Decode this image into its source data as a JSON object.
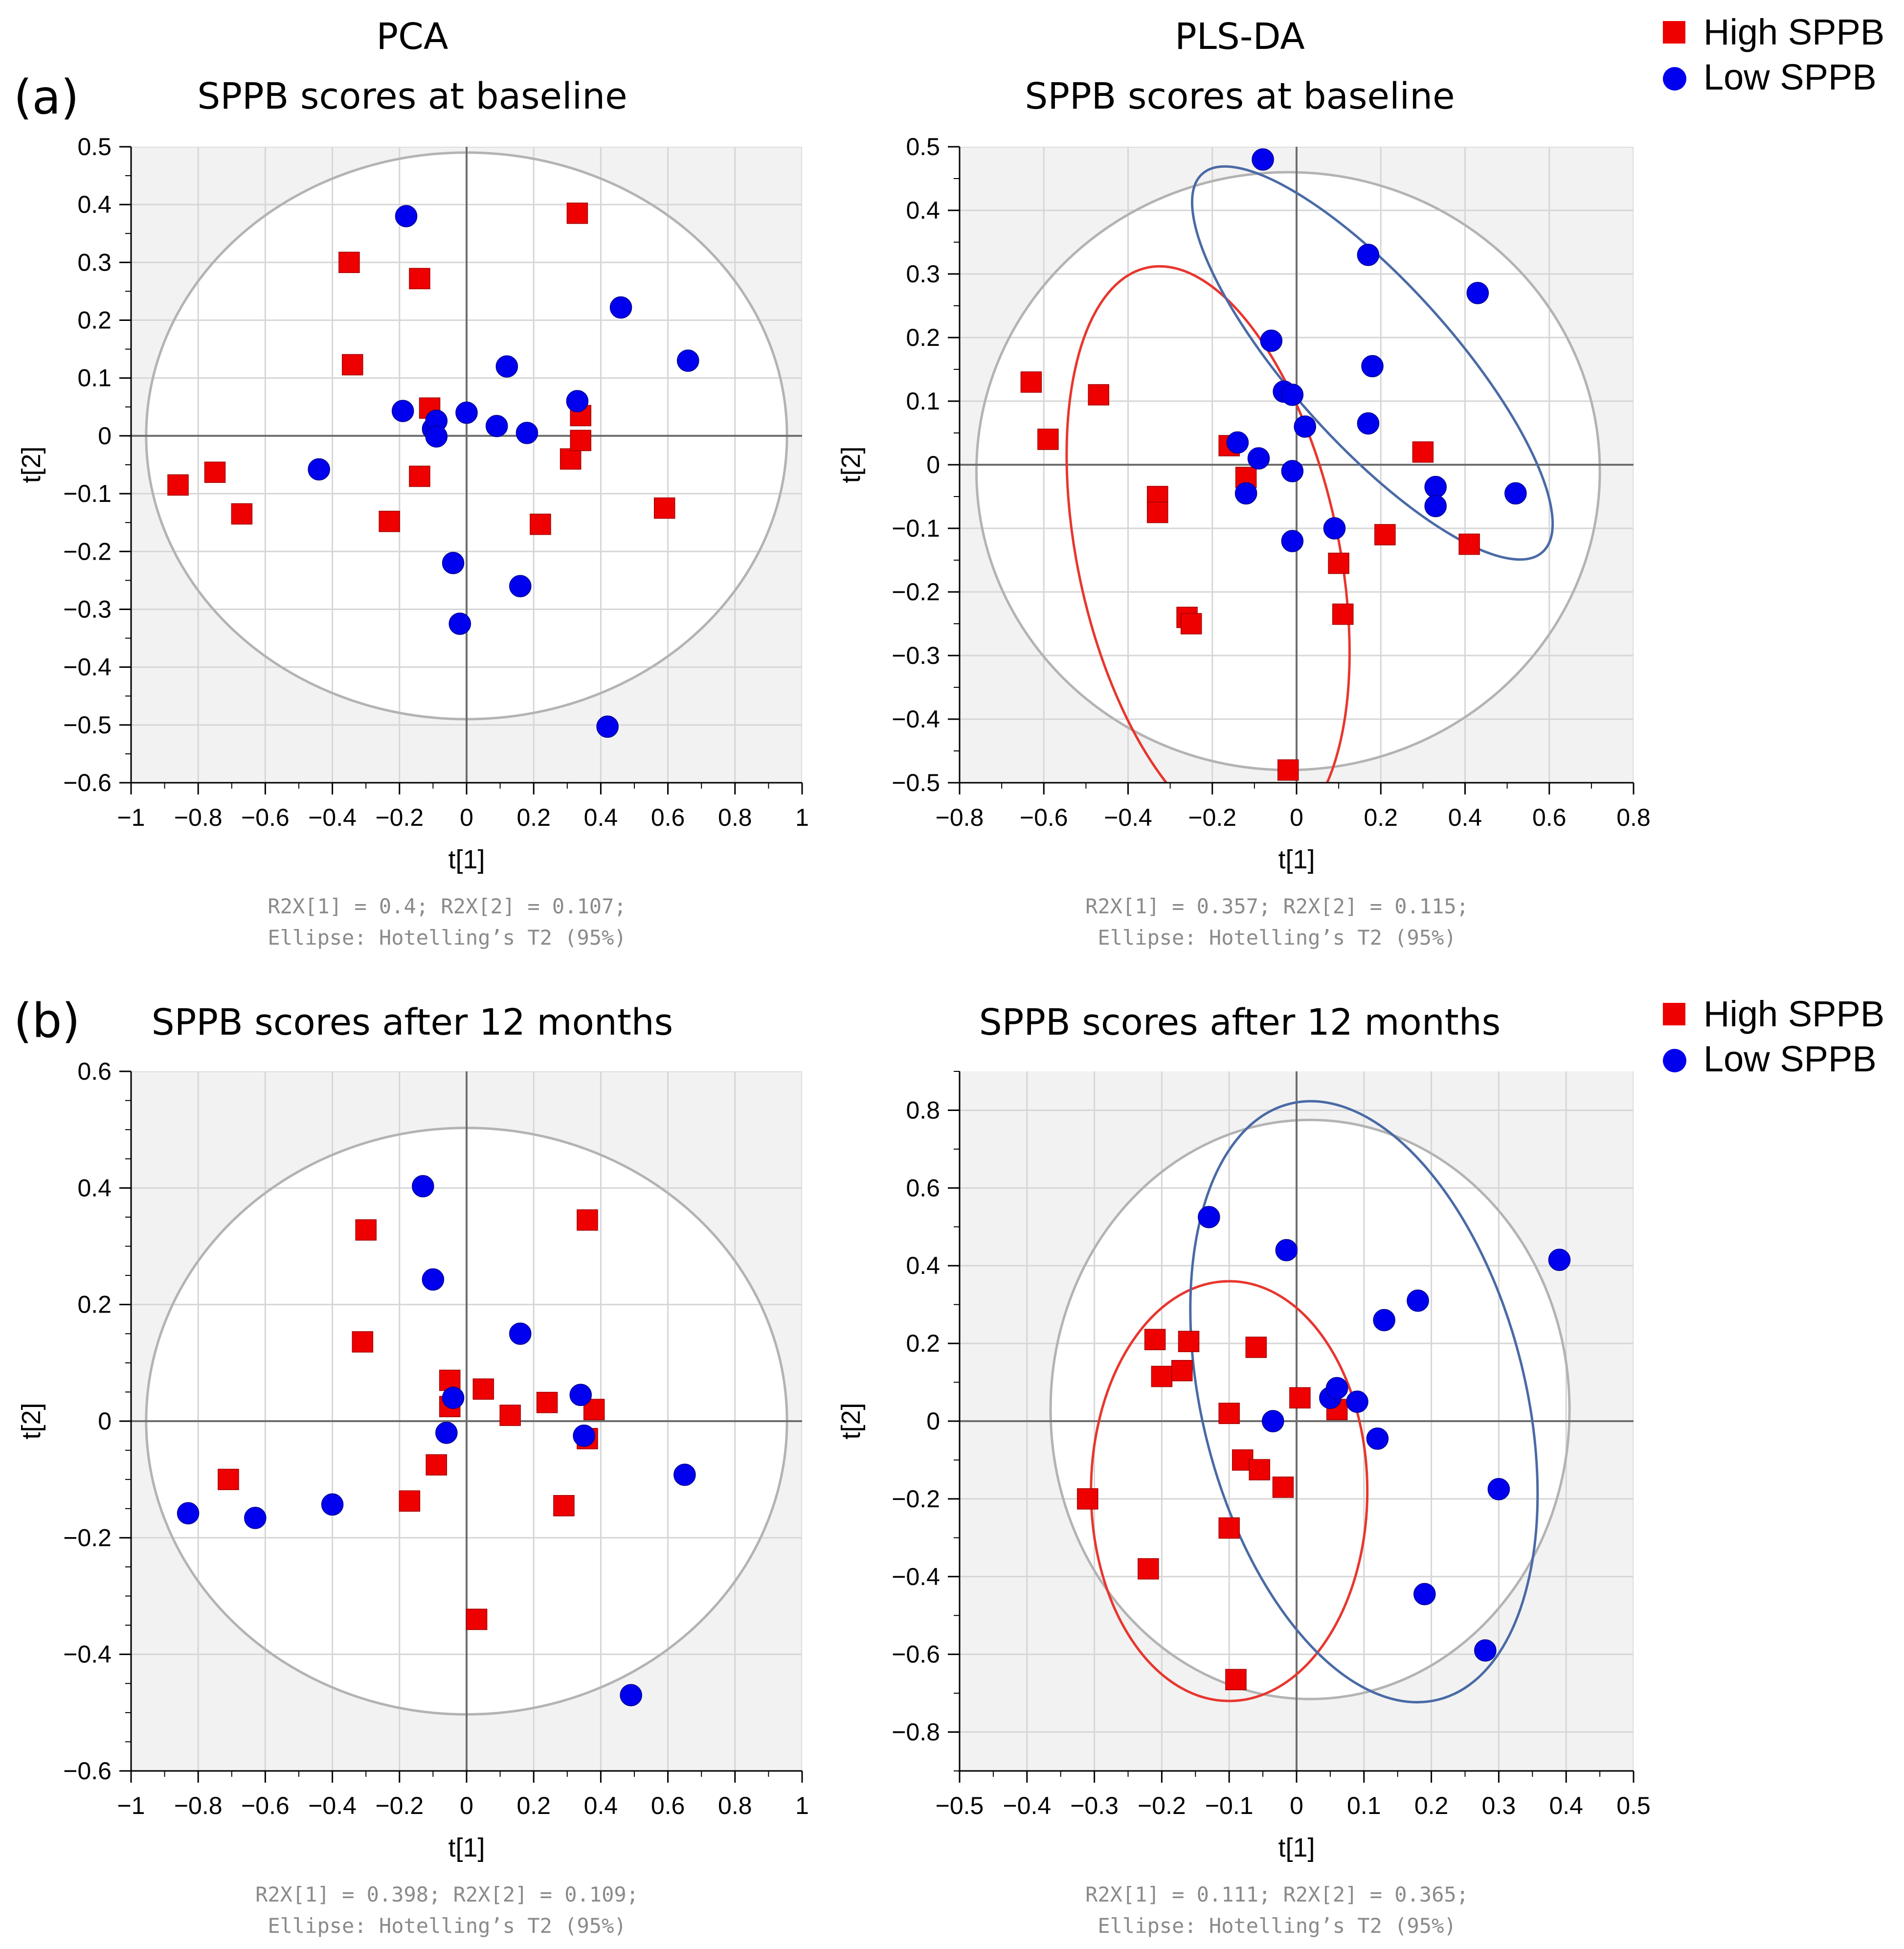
{
  "colors": {
    "high": "#ee0000",
    "low": "#0000ee",
    "high_ellipse": "#e8362e",
    "low_ellipse": "#4a6aa5",
    "t2_ellipse": "#b3b3b3",
    "grid": "#d6d6d6",
    "shade": "#f2f2f2",
    "axis": "#6e6e6e"
  },
  "panel_labels": {
    "a": "(a)",
    "b": "(b)"
  },
  "legend": {
    "high": "High SPPB",
    "low": "Low SPPB"
  },
  "chart_data": [
    {
      "id": "a-pca",
      "type": "scatter",
      "title_lines": [
        "PCA",
        "SPPB scores at baseline"
      ],
      "xlabel": "t[1]",
      "ylabel": "t[2]",
      "xlim": [
        -1,
        1
      ],
      "ylim": [
        -0.6,
        0.5
      ],
      "xticks": [
        -1,
        -0.8,
        -0.6,
        -0.4,
        -0.2,
        0,
        0.2,
        0.4,
        0.6,
        0.8,
        1
      ],
      "xtick_labels": [
        "−1",
        "−0.8",
        "−0.6",
        "−0.4",
        "−0.2",
        "0",
        "0.2",
        "0.4",
        "0.6",
        "0.8",
        "1"
      ],
      "yticks": [
        -0.6,
        -0.5,
        -0.4,
        -0.3,
        -0.2,
        -0.1,
        0,
        0.1,
        0.2,
        0.3,
        0.4,
        0.5
      ],
      "ytick_labels": [
        "−0.6",
        "−0.5",
        "−0.4",
        "−0.3",
        "−0.2",
        "−0.1",
        "0",
        "0.1",
        "0.2",
        "0.3",
        "0.4",
        "0.5"
      ],
      "x_minor_step": 0.1,
      "y_minor_step": 0.05,
      "footnote": [
        "R2X[1] = 0.4; R2X[2] = 0.107;",
        "Ellipse: Hotelling’s T2 (95%)"
      ],
      "t2_ellipse": {
        "cx": 0,
        "cy": 0,
        "rx": 0.955,
        "ry": 0.49,
        "angle": 0
      },
      "group_ellipses": [],
      "series": [
        {
          "name": "High SPPB",
          "marker": "square",
          "points": [
            [
              -0.86,
              -0.085
            ],
            [
              -0.75,
              -0.063
            ],
            [
              -0.67,
              -0.135
            ],
            [
              -0.35,
              0.3
            ],
            [
              -0.34,
              0.123
            ],
            [
              -0.23,
              -0.148
            ],
            [
              -0.14,
              0.272
            ],
            [
              -0.14,
              -0.07
            ],
            [
              -0.11,
              0.048
            ],
            [
              0.22,
              -0.153
            ],
            [
              0.31,
              -0.04
            ],
            [
              0.33,
              0.385
            ],
            [
              0.34,
              0.035
            ],
            [
              0.34,
              -0.008
            ],
            [
              0.59,
              -0.125
            ]
          ]
        },
        {
          "name": "Low SPPB",
          "marker": "circle",
          "points": [
            [
              -0.44,
              -0.058
            ],
            [
              -0.19,
              0.043
            ],
            [
              -0.18,
              0.38
            ],
            [
              -0.1,
              0.012
            ],
            [
              -0.09,
              0.026
            ],
            [
              -0.09,
              -0.001
            ],
            [
              0.0,
              0.04
            ],
            [
              0.09,
              0.017
            ],
            [
              0.12,
              0.12
            ],
            [
              0.18,
              0.005
            ],
            [
              0.33,
              0.06
            ],
            [
              0.46,
              0.222
            ],
            [
              0.66,
              0.13
            ],
            [
              -0.04,
              -0.22
            ],
            [
              0.16,
              -0.26
            ],
            [
              -0.02,
              -0.325
            ],
            [
              0.42,
              -0.503
            ]
          ]
        }
      ]
    },
    {
      "id": "a-plsda",
      "type": "scatter",
      "title_lines": [
        "PLS-DA",
        "SPPB scores at baseline"
      ],
      "xlabel": "t[1]",
      "ylabel": "t[2]",
      "xlim": [
        -0.8,
        0.8
      ],
      "ylim": [
        -0.5,
        0.5
      ],
      "xticks": [
        -0.8,
        -0.6,
        -0.4,
        -0.2,
        0,
        0.2,
        0.4,
        0.6,
        0.8
      ],
      "xtick_labels": [
        "−0.8",
        "−0.6",
        "−0.4",
        "−0.2",
        "0",
        "0.2",
        "0.4",
        "0.6",
        "0.8"
      ],
      "yticks": [
        -0.5,
        -0.4,
        -0.3,
        -0.2,
        -0.1,
        0,
        0.1,
        0.2,
        0.3,
        0.4,
        0.5
      ],
      "ytick_labels": [
        "−0.5",
        "−0.4",
        "−0.3",
        "−0.2",
        "−0.1",
        "0",
        "0.1",
        "0.2",
        "0.3",
        "0.4",
        "0.5"
      ],
      "x_minor_step": 0.1,
      "y_minor_step": 0.05,
      "footnote": [
        "R2X[1] = 0.357; R2X[2] = 0.115;",
        "Ellipse: Hotelling’s T2 (95%)"
      ],
      "t2_ellipse": {
        "cx": -0.02,
        "cy": -0.01,
        "rx": 0.74,
        "ry": 0.47,
        "angle": 0
      },
      "group_ellipses": [
        {
          "group": "High SPPB",
          "cx": -0.21,
          "cy": -0.14,
          "rx": 0.31,
          "ry": 0.46,
          "angle": -12
        },
        {
          "group": "Low SPPB",
          "cx": 0.18,
          "cy": 0.16,
          "rx": 0.19,
          "ry": 0.4,
          "angle": -42
        }
      ],
      "series": [
        {
          "name": "High SPPB",
          "marker": "square",
          "points": [
            [
              -0.63,
              0.13
            ],
            [
              -0.59,
              0.04
            ],
            [
              -0.47,
              0.11
            ],
            [
              -0.33,
              -0.05
            ],
            [
              -0.33,
              -0.075
            ],
            [
              -0.26,
              -0.24
            ],
            [
              -0.25,
              -0.25
            ],
            [
              -0.16,
              0.03
            ],
            [
              -0.12,
              -0.02
            ],
            [
              -0.02,
              -0.48
            ],
            [
              0.1,
              -0.155
            ],
            [
              0.11,
              -0.235
            ],
            [
              0.21,
              -0.11
            ],
            [
              0.3,
              0.02
            ],
            [
              0.41,
              -0.125
            ]
          ]
        },
        {
          "name": "Low SPPB",
          "marker": "circle",
          "points": [
            [
              -0.14,
              0.035
            ],
            [
              -0.12,
              -0.045
            ],
            [
              -0.09,
              0.01
            ],
            [
              -0.08,
              0.48
            ],
            [
              -0.06,
              0.195
            ],
            [
              -0.03,
              0.115
            ],
            [
              -0.01,
              0.11
            ],
            [
              0.02,
              0.06
            ],
            [
              -0.01,
              -0.01
            ],
            [
              -0.01,
              -0.12
            ],
            [
              0.09,
              -0.1
            ],
            [
              0.17,
              0.33
            ],
            [
              0.17,
              0.065
            ],
            [
              0.18,
              0.155
            ],
            [
              0.33,
              -0.035
            ],
            [
              0.33,
              -0.065
            ],
            [
              0.43,
              0.27
            ],
            [
              0.52,
              -0.045
            ]
          ]
        }
      ]
    },
    {
      "id": "b-pca",
      "type": "scatter",
      "title_lines": [
        "SPPB scores after 12 months"
      ],
      "xlabel": "t[1]",
      "ylabel": "t[2]",
      "xlim": [
        -1,
        1
      ],
      "ylim": [
        -0.6,
        0.6
      ],
      "xticks": [
        -1,
        -0.8,
        -0.6,
        -0.4,
        -0.2,
        0,
        0.2,
        0.4,
        0.6,
        0.8,
        1
      ],
      "xtick_labels": [
        "−1",
        "−0.8",
        "−0.6",
        "−0.4",
        "−0.2",
        "0",
        "0.2",
        "0.4",
        "0.6",
        "0.8",
        "1"
      ],
      "yticks": [
        -0.6,
        -0.4,
        -0.2,
        0,
        0.2,
        0.4,
        0.6
      ],
      "ytick_labels": [
        "−0.6",
        "−0.4",
        "−0.2",
        "0",
        "0.2",
        "0.4",
        "0.6"
      ],
      "x_minor_step": 0.1,
      "y_minor_step": 0.05,
      "footnote": [
        "R2X[1] = 0.398; R2X[2] = 0.109;",
        "Ellipse: Hotelling’s T2 (95%)"
      ],
      "t2_ellipse": {
        "cx": 0,
        "cy": 0,
        "rx": 0.955,
        "ry": 0.503,
        "angle": 0
      },
      "group_ellipses": [],
      "series": [
        {
          "name": "High SPPB",
          "marker": "square",
          "points": [
            [
              -0.71,
              -0.1
            ],
            [
              -0.3,
              0.328
            ],
            [
              -0.31,
              0.136
            ],
            [
              -0.17,
              -0.137
            ],
            [
              -0.09,
              -0.075
            ],
            [
              -0.05,
              0.07
            ],
            [
              -0.05,
              0.025
            ],
            [
              0.05,
              0.055
            ],
            [
              0.13,
              0.01
            ],
            [
              0.24,
              0.032
            ],
            [
              0.29,
              -0.145
            ],
            [
              0.36,
              0.345
            ],
            [
              0.36,
              -0.03
            ],
            [
              0.38,
              0.02
            ],
            [
              0.03,
              -0.34
            ]
          ]
        },
        {
          "name": "Low SPPB",
          "marker": "circle",
          "points": [
            [
              -0.83,
              -0.158
            ],
            [
              -0.63,
              -0.166
            ],
            [
              -0.4,
              -0.143
            ],
            [
              -0.13,
              0.403
            ],
            [
              -0.1,
              0.243
            ],
            [
              -0.06,
              -0.02
            ],
            [
              -0.04,
              0.04
            ],
            [
              0.16,
              0.15
            ],
            [
              0.34,
              0.045
            ],
            [
              0.35,
              -0.025
            ],
            [
              0.65,
              -0.092
            ],
            [
              0.49,
              -0.47
            ]
          ]
        }
      ]
    },
    {
      "id": "b-plsda",
      "type": "scatter",
      "title_lines": [
        "SPPB scores after 12 months"
      ],
      "xlabel": "t[1]",
      "ylabel": "t[2]",
      "xlim": [
        -0.5,
        0.5
      ],
      "ylim": [
        -0.9,
        0.9
      ],
      "xticks": [
        -0.5,
        -0.4,
        -0.3,
        -0.2,
        -0.1,
        0,
        0.1,
        0.2,
        0.3,
        0.4,
        0.5
      ],
      "xtick_labels": [
        "−0.5",
        "−0.4",
        "−0.3",
        "−0.2",
        "−0.1",
        "0",
        "0.1",
        "0.2",
        "0.3",
        "0.4",
        "0.5"
      ],
      "yticks": [
        -0.8,
        -0.6,
        -0.4,
        -0.2,
        0,
        0.2,
        0.4,
        0.6,
        0.8
      ],
      "ytick_labels": [
        "−0.8",
        "−0.6",
        "−0.4",
        "−0.2",
        "0",
        "0.2",
        "0.4",
        "0.6",
        "0.8"
      ],
      "x_minor_step": 0.05,
      "y_minor_step": 0.1,
      "footnote": [
        "R2X[1] = 0.111; R2X[2] = 0.365;",
        "Ellipse: Hotelling’s T2 (95%)"
      ],
      "t2_ellipse": {
        "cx": 0.02,
        "cy": 0.03,
        "rx": 0.385,
        "ry": 0.745,
        "angle": 0
      },
      "group_ellipses": [
        {
          "group": "High SPPB",
          "cx": -0.1,
          "cy": -0.18,
          "rx": 0.205,
          "ry": 0.54,
          "angle": 0
        },
        {
          "group": "Low SPPB",
          "cx": 0.1,
          "cy": 0.05,
          "rx": 0.24,
          "ry": 0.79,
          "angle": -14
        }
      ],
      "series": [
        {
          "name": "High SPPB",
          "marker": "square",
          "points": [
            [
              -0.31,
              -0.2
            ],
            [
              -0.22,
              -0.38
            ],
            [
              -0.21,
              0.21
            ],
            [
              -0.2,
              0.115
            ],
            [
              -0.17,
              0.13
            ],
            [
              -0.16,
              0.205
            ],
            [
              -0.1,
              0.02
            ],
            [
              -0.1,
              -0.275
            ],
            [
              -0.09,
              -0.665
            ],
            [
              -0.08,
              -0.1
            ],
            [
              -0.06,
              0.19
            ],
            [
              -0.055,
              -0.125
            ],
            [
              -0.02,
              -0.17
            ],
            [
              0.005,
              0.06
            ],
            [
              0.06,
              0.03
            ]
          ]
        },
        {
          "name": "Low SPPB",
          "marker": "circle",
          "points": [
            [
              -0.13,
              0.525
            ],
            [
              -0.035,
              0.0
            ],
            [
              -0.015,
              0.44
            ],
            [
              0.05,
              0.06
            ],
            [
              0.06,
              0.085
            ],
            [
              0.09,
              0.05
            ],
            [
              0.12,
              -0.045
            ],
            [
              0.13,
              0.26
            ],
            [
              0.18,
              0.31
            ],
            [
              0.19,
              -0.445
            ],
            [
              0.28,
              -0.59
            ],
            [
              0.3,
              -0.175
            ],
            [
              0.39,
              0.415
            ]
          ]
        }
      ]
    }
  ]
}
